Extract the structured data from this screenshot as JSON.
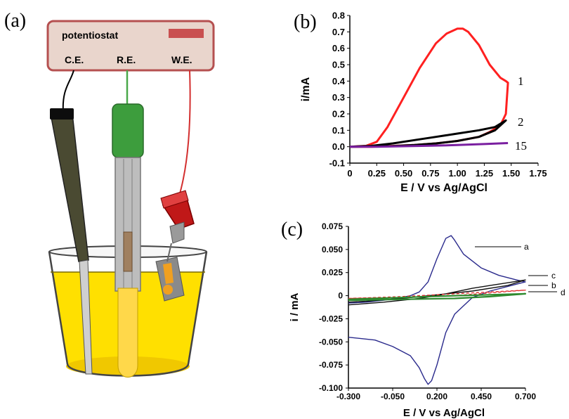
{
  "panel_a": {
    "label": "(a)",
    "device_label": "potentiostat",
    "electrodes": [
      "C.E.",
      "R.E.",
      "W.E."
    ],
    "colors": {
      "box_fill": "#e9d5cc",
      "box_border": "#b55050",
      "indicator": "#c95050",
      "ce_wire": "#000000",
      "re_wire": "#4aa84a",
      "we_wire": "#d32f2f",
      "solution": "#ffe000",
      "re_cap": "#3d9d3d",
      "we_cap": "#c01818",
      "ce_body": "#4a4a32"
    }
  },
  "panel_b": {
    "label": "(b)",
    "xlabel": "E / V vs Ag/AgCl",
    "ylabel": "i/mA",
    "x_ticks": [
      "0",
      "0.25",
      "0.50",
      "0.75",
      "1.00",
      "1.25",
      "1.50",
      "1.75"
    ],
    "y_ticks": [
      "-0.1",
      "0.0",
      "0.1",
      "0.2",
      "0.3",
      "0.4",
      "0.5",
      "0.6",
      "0.7",
      "0.8"
    ],
    "curve_labels": [
      "1",
      "2",
      "15"
    ]
  },
  "panel_c": {
    "label": "(c)",
    "xlabel": "E / V vs Ag/AgCl",
    "ylabel": "i / mA",
    "x_ticks": [
      "-0.300",
      "-0.050",
      "0.200",
      "0.450",
      "0.700"
    ],
    "y_ticks": [
      "0.075",
      "0.050",
      "0.025",
      "0",
      "-0.025",
      "-0.050",
      "-0.075",
      "-0.100"
    ],
    "curve_labels": [
      "a",
      "c",
      "b",
      "d"
    ]
  },
  "chart_data": [
    {
      "type": "line",
      "xlabel": "E / V vs Ag/AgCl",
      "ylabel": "i/mA",
      "xlim": [
        0,
        1.75
      ],
      "ylim": [
        -0.1,
        0.8
      ],
      "series": [
        {
          "name": "1",
          "color": "#ff2020",
          "x": [
            0,
            0.15,
            0.25,
            0.35,
            0.5,
            0.65,
            0.8,
            0.9,
            1.0,
            1.05,
            1.1,
            1.2,
            1.3,
            1.4,
            1.45,
            1.47,
            1.45,
            1.4,
            1.3,
            1.2,
            1.0,
            0.8,
            0.6,
            0.4,
            0.2,
            0.0
          ],
          "y": [
            0,
            0.005,
            0.03,
            0.12,
            0.3,
            0.48,
            0.63,
            0.69,
            0.72,
            0.72,
            0.7,
            0.62,
            0.5,
            0.42,
            0.4,
            0.39,
            0.2,
            0.13,
            0.09,
            0.06,
            0.035,
            0.02,
            0.01,
            0.005,
            0.0,
            0.0
          ]
        },
        {
          "name": "2",
          "color": "#000000",
          "x": [
            0,
            0.2,
            0.4,
            0.6,
            0.8,
            1.0,
            1.2,
            1.35,
            1.45,
            1.35,
            1.2,
            1.0,
            0.8,
            0.6,
            0.4,
            0.2,
            0.0
          ],
          "y": [
            0,
            0.005,
            0.02,
            0.04,
            0.06,
            0.08,
            0.1,
            0.12,
            0.16,
            0.1,
            0.06,
            0.035,
            0.02,
            0.01,
            0.004,
            0.001,
            0
          ]
        },
        {
          "name": "15",
          "color": "#7a1fa0",
          "x": [
            0,
            0.25,
            0.5,
            0.75,
            1.0,
            1.25,
            1.47
          ],
          "y": [
            0,
            0.0,
            0.003,
            0.006,
            0.01,
            0.016,
            0.022
          ]
        }
      ]
    },
    {
      "type": "line",
      "xlabel": "E / V vs Ag/AgCl",
      "ylabel": "i / mA",
      "xlim": [
        -0.3,
        0.7
      ],
      "ylim": [
        -0.1,
        0.075
      ],
      "series": [
        {
          "name": "a",
          "color": "#2a2a8c",
          "x": [
            -0.3,
            -0.2,
            -0.1,
            0.0,
            0.05,
            0.1,
            0.15,
            0.2,
            0.25,
            0.28,
            0.3,
            0.35,
            0.45,
            0.55,
            0.65,
            0.7,
            0.6,
            0.5,
            0.4,
            0.3,
            0.25,
            0.2,
            0.17,
            0.15,
            0.13,
            0.1,
            0.05,
            -0.05,
            -0.15,
            -0.3
          ],
          "y": [
            -0.008,
            -0.007,
            -0.005,
            -0.002,
            0.0,
            0.004,
            0.015,
            0.04,
            0.062,
            0.065,
            0.06,
            0.045,
            0.03,
            0.022,
            0.017,
            0.015,
            0.01,
            0.005,
            -0.002,
            -0.02,
            -0.04,
            -0.075,
            -0.092,
            -0.096,
            -0.09,
            -0.078,
            -0.065,
            -0.055,
            -0.048,
            -0.045
          ]
        },
        {
          "name": "c",
          "color": "#111111",
          "x": [
            -0.3,
            -0.1,
            0.1,
            0.2,
            0.3,
            0.4,
            0.5,
            0.6,
            0.7,
            0.6,
            0.4,
            0.2,
            0.1,
            0.0,
            -0.2,
            -0.3
          ],
          "y": [
            -0.01,
            -0.007,
            -0.003,
            0.0,
            0.004,
            0.008,
            0.011,
            0.014,
            0.017,
            0.011,
            0.005,
            0.001,
            -0.001,
            -0.003,
            -0.006,
            -0.007
          ]
        },
        {
          "name": "b",
          "color": "#e03030",
          "x": [
            -0.3,
            0.0,
            0.3,
            0.5,
            0.7,
            0.5,
            0.3,
            0.0,
            -0.3
          ],
          "y": [
            -0.003,
            -0.001,
            0.002,
            0.004,
            0.006,
            0.003,
            0.0,
            -0.002,
            -0.003
          ]
        },
        {
          "name": "d",
          "color": "#2f8a2f",
          "x": [
            -0.3,
            0.0,
            0.3,
            0.5,
            0.7,
            0.5,
            0.3,
            0.0,
            -0.3
          ],
          "y": [
            -0.004,
            -0.002,
            0.0,
            0.001,
            0.002,
            -0.001,
            -0.003,
            -0.004,
            -0.005
          ]
        }
      ]
    }
  ]
}
